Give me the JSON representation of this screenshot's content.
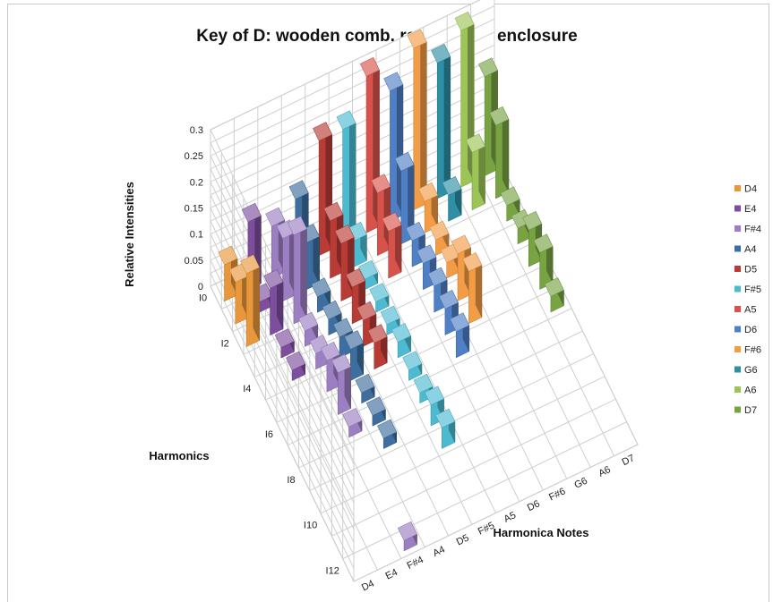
{
  "chart_data": {
    "type": "bar3d",
    "title": "Key of D: wooden comb, rectangular enclosure",
    "xlabel": "Harmonica Notes",
    "ylabel": "Harmonics",
    "zlabel": "Relative Intensities",
    "notes": [
      "D4",
      "E4",
      "F#4",
      "A4",
      "D5",
      "F#5",
      "A5",
      "D6",
      "F#6",
      "G6",
      "A6",
      "D7"
    ],
    "harmonics": [
      "I0",
      "I2",
      "I4",
      "I6",
      "I8",
      "I10",
      "I12"
    ],
    "zlim": [
      0,
      0.3
    ],
    "zticks": [
      "0",
      "0.05",
      "0.1",
      "0.15",
      "0.2",
      "0.25",
      "0.3"
    ],
    "grid": true,
    "legend_position": "right",
    "series": [
      {
        "name": "D4",
        "color": "#E8973B",
        "values": [
          0.07,
          0.08,
          0.14,
          0,
          0,
          0,
          0,
          0,
          0,
          0,
          0,
          0,
          0
        ]
      },
      {
        "name": "E4",
        "color": "#7E4E9E",
        "values": [
          0.13,
          0.02,
          0.09,
          0.02,
          0.02,
          0,
          0,
          0,
          0,
          0,
          0,
          0,
          0
        ]
      },
      {
        "name": "F#4",
        "color": "#9C7EC2",
        "values": [
          0.1,
          0.12,
          0.17,
          0.03,
          0.03,
          0.06,
          0.08,
          0.02,
          0,
          0,
          0,
          0,
          0.02
        ]
      },
      {
        "name": "A4",
        "color": "#3E6E9F",
        "values": [
          0.13,
          0.09,
          0.03,
          0.03,
          0.04,
          0.06,
          0.02,
          0.02,
          0.02,
          0,
          0,
          0,
          0
        ]
      },
      {
        "name": "D5",
        "color": "#B83B36",
        "values": [
          0.22,
          0.11,
          0.11,
          0.07,
          0.05,
          0.05,
          0,
          0,
          0,
          0,
          0,
          0,
          0
        ]
      },
      {
        "name": "F#5",
        "color": "#4CBBD2",
        "values": [
          0.22,
          0.05,
          0.02,
          0.02,
          0.02,
          0.03,
          0.02,
          0.02,
          0.04,
          0.04,
          0,
          0,
          0
        ]
      },
      {
        "name": "A5",
        "color": "#D8524C",
        "values": [
          0.3,
          0.12,
          0.09,
          0,
          0,
          0,
          0,
          0,
          0,
          0,
          0,
          0,
          0
        ]
      },
      {
        "name": "D6",
        "color": "#4F7FC4",
        "values": [
          0.25,
          0.14,
          0.05,
          0.05,
          0.05,
          0.05,
          0.05,
          0,
          0,
          0,
          0,
          0,
          0
        ]
      },
      {
        "name": "F#6",
        "color": "#F39C46",
        "values": [
          0.31,
          0.06,
          0.03,
          0.03,
          0.09,
          0.1,
          0,
          0,
          0,
          0,
          0,
          0,
          0
        ]
      },
      {
        "name": "G6",
        "color": "#2E8FA6",
        "values": [
          0.26,
          0.05,
          0,
          0,
          0,
          0,
          0,
          0,
          0,
          0,
          0,
          0,
          0
        ]
      },
      {
        "name": "A6",
        "color": "#9CC457",
        "values": [
          0.3,
          0.11,
          0,
          0,
          0,
          0,
          0,
          0,
          0,
          0,
          0,
          0,
          0
        ]
      },
      {
        "name": "D7",
        "color": "#78A343",
        "values": [
          0.19,
          0.14,
          0.03,
          0.03,
          0.07,
          0.07,
          0.03,
          0,
          0,
          0,
          0,
          0,
          0
        ]
      }
    ]
  }
}
